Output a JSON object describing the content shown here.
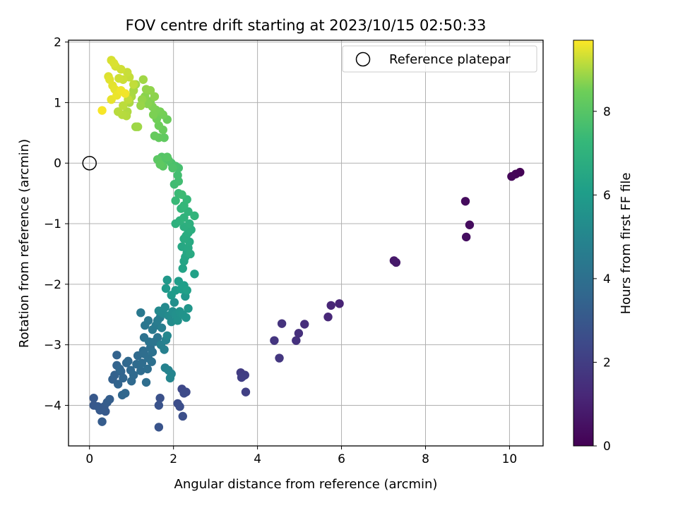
{
  "chart_data": {
    "type": "scatter",
    "title": "FOV centre drift starting at 2023/10/15 02:50:33",
    "xlabel": "Angular distance from reference (arcmin)",
    "ylabel": "Rotation from reference (arcmin)",
    "colorbar_label": "Hours from first FF file",
    "xlim": [
      -0.5,
      10.8
    ],
    "ylim": [
      -4.67,
      2.03
    ],
    "x_ticks": [
      0,
      2,
      4,
      6,
      8,
      10
    ],
    "y_ticks": [
      -4,
      -3,
      -2,
      -1,
      0,
      1,
      2
    ],
    "colorbar_range": [
      0,
      9.7
    ],
    "colorbar_ticks": [
      0,
      2,
      4,
      6,
      8
    ],
    "colormap": "viridis",
    "grid": true,
    "legend": {
      "placement": "top-right",
      "entries": [
        "Reference platepar"
      ]
    },
    "reference_point": {
      "x": 0,
      "y": 0
    },
    "points": [
      {
        "x": 10.25,
        "y": -0.15,
        "t": 0.05
      },
      {
        "x": 10.15,
        "y": -0.18,
        "t": 0.1
      },
      {
        "x": 10.05,
        "y": -0.22,
        "t": 0.15
      },
      {
        "x": 8.95,
        "y": -0.63,
        "t": 0.3
      },
      {
        "x": 9.05,
        "y": -1.02,
        "t": 0.35
      },
      {
        "x": 8.97,
        "y": -1.22,
        "t": 0.4
      },
      {
        "x": 7.25,
        "y": -1.61,
        "t": 0.7
      },
      {
        "x": 7.3,
        "y": -1.64,
        "t": 0.75
      },
      {
        "x": 5.95,
        "y": -2.32,
        "t": 1.1
      },
      {
        "x": 5.75,
        "y": -2.35,
        "t": 1.15
      },
      {
        "x": 5.68,
        "y": -2.54,
        "t": 1.2
      },
      {
        "x": 5.12,
        "y": -2.66,
        "t": 1.4
      },
      {
        "x": 4.98,
        "y": -2.81,
        "t": 1.5
      },
      {
        "x": 4.92,
        "y": -2.93,
        "t": 1.55
      },
      {
        "x": 4.58,
        "y": -2.65,
        "t": 1.6
      },
      {
        "x": 4.4,
        "y": -2.93,
        "t": 1.7
      },
      {
        "x": 4.52,
        "y": -3.22,
        "t": 1.75
      },
      {
        "x": 3.6,
        "y": -3.46,
        "t": 1.95
      },
      {
        "x": 3.65,
        "y": -3.52,
        "t": 2.0
      },
      {
        "x": 3.7,
        "y": -3.5,
        "t": 2.02
      },
      {
        "x": 3.62,
        "y": -3.54,
        "t": 2.05
      },
      {
        "x": 3.72,
        "y": -3.78,
        "t": 2.1
      },
      {
        "x": 2.2,
        "y": -3.73,
        "t": 2.4
      },
      {
        "x": 2.3,
        "y": -3.78,
        "t": 2.45
      },
      {
        "x": 2.25,
        "y": -3.8,
        "t": 2.5
      },
      {
        "x": 2.1,
        "y": -3.97,
        "t": 2.6
      },
      {
        "x": 2.15,
        "y": -4.02,
        "t": 2.62
      },
      {
        "x": 2.22,
        "y": -4.18,
        "t": 2.65
      },
      {
        "x": 1.68,
        "y": -3.88,
        "t": 2.75
      },
      {
        "x": 1.65,
        "y": -4.0,
        "t": 2.8
      },
      {
        "x": 1.65,
        "y": -4.36,
        "t": 2.85
      },
      {
        "x": 0.1,
        "y": -3.88,
        "t": 3.0
      },
      {
        "x": 0.1,
        "y": -4.0,
        "t": 3.0
      },
      {
        "x": 0.2,
        "y": -4.02,
        "t": 3.05
      },
      {
        "x": 0.3,
        "y": -4.05,
        "t": 3.05
      },
      {
        "x": 0.25,
        "y": -4.08,
        "t": 3.1
      },
      {
        "x": 0.38,
        "y": -4.1,
        "t": 3.1
      },
      {
        "x": 0.35,
        "y": -4.02,
        "t": 3.12
      },
      {
        "x": 0.3,
        "y": -4.27,
        "t": 3.15
      },
      {
        "x": 0.42,
        "y": -3.95,
        "t": 3.2
      },
      {
        "x": 0.48,
        "y": -3.9,
        "t": 3.25
      },
      {
        "x": 0.55,
        "y": -3.57,
        "t": 3.35
      },
      {
        "x": 0.6,
        "y": -3.5,
        "t": 3.4
      },
      {
        "x": 0.65,
        "y": -3.17,
        "t": 3.45
      },
      {
        "x": 0.65,
        "y": -3.34,
        "t": 3.48
      },
      {
        "x": 0.68,
        "y": -3.65,
        "t": 3.5
      },
      {
        "x": 0.75,
        "y": -3.44,
        "t": 3.52
      },
      {
        "x": 0.8,
        "y": -3.55,
        "t": 3.55
      },
      {
        "x": 0.72,
        "y": -3.4,
        "t": 3.58
      },
      {
        "x": 0.78,
        "y": -3.83,
        "t": 3.6
      },
      {
        "x": 0.85,
        "y": -3.8,
        "t": 3.62
      },
      {
        "x": 0.88,
        "y": -3.3,
        "t": 3.65
      },
      {
        "x": 0.92,
        "y": -3.27,
        "t": 3.68
      },
      {
        "x": 0.98,
        "y": -3.42,
        "t": 3.7
      },
      {
        "x": 1.0,
        "y": -3.6,
        "t": 3.72
      },
      {
        "x": 1.05,
        "y": -3.5,
        "t": 3.75
      },
      {
        "x": 1.12,
        "y": -3.32,
        "t": 3.78
      },
      {
        "x": 1.15,
        "y": -3.18,
        "t": 3.8
      },
      {
        "x": 1.22,
        "y": -3.43,
        "t": 3.82
      },
      {
        "x": 1.25,
        "y": -3.3,
        "t": 3.85
      },
      {
        "x": 1.28,
        "y": -3.1,
        "t": 3.88
      },
      {
        "x": 1.3,
        "y": -3.15,
        "t": 3.9
      },
      {
        "x": 1.35,
        "y": -3.62,
        "t": 3.9
      },
      {
        "x": 1.38,
        "y": -3.4,
        "t": 3.92
      },
      {
        "x": 1.4,
        "y": -3.22,
        "t": 3.95
      },
      {
        "x": 1.45,
        "y": -3.05,
        "t": 3.98
      },
      {
        "x": 1.48,
        "y": -3.28,
        "t": 4.0
      },
      {
        "x": 1.5,
        "y": -3.12,
        "t": 4.05
      },
      {
        "x": 1.3,
        "y": -2.88,
        "t": 4.1
      },
      {
        "x": 1.42,
        "y": -2.95,
        "t": 4.15
      },
      {
        "x": 1.55,
        "y": -2.95,
        "t": 4.2
      },
      {
        "x": 1.62,
        "y": -2.88,
        "t": 4.25
      },
      {
        "x": 1.32,
        "y": -2.68,
        "t": 4.3
      },
      {
        "x": 1.4,
        "y": -2.6,
        "t": 4.35
      },
      {
        "x": 1.22,
        "y": -2.47,
        "t": 4.4
      },
      {
        "x": 1.5,
        "y": -2.75,
        "t": 4.45
      },
      {
        "x": 1.58,
        "y": -2.68,
        "t": 4.5
      },
      {
        "x": 1.62,
        "y": -2.6,
        "t": 4.55
      },
      {
        "x": 1.68,
        "y": -2.55,
        "t": 4.6
      },
      {
        "x": 1.72,
        "y": -2.72,
        "t": 4.65
      },
      {
        "x": 1.7,
        "y": -3.0,
        "t": 4.7
      },
      {
        "x": 1.78,
        "y": -3.08,
        "t": 4.75
      },
      {
        "x": 1.82,
        "y": -2.92,
        "t": 4.8
      },
      {
        "x": 1.8,
        "y": -3.38,
        "t": 4.85
      },
      {
        "x": 1.88,
        "y": -3.42,
        "t": 4.9
      },
      {
        "x": 1.95,
        "y": -3.48,
        "t": 4.95
      },
      {
        "x": 1.92,
        "y": -3.55,
        "t": 5.0
      },
      {
        "x": 1.85,
        "y": -2.85,
        "t": 5.05
      },
      {
        "x": 1.75,
        "y": -2.48,
        "t": 5.1
      },
      {
        "x": 1.65,
        "y": -2.44,
        "t": 5.15
      },
      {
        "x": 1.8,
        "y": -2.38,
        "t": 5.2
      },
      {
        "x": 1.88,
        "y": -2.52,
        "t": 5.25
      },
      {
        "x": 1.95,
        "y": -2.62,
        "t": 5.3
      },
      {
        "x": 1.98,
        "y": -2.45,
        "t": 5.35
      },
      {
        "x": 2.02,
        "y": -2.3,
        "t": 5.4
      },
      {
        "x": 2.05,
        "y": -2.5,
        "t": 5.45
      },
      {
        "x": 2.1,
        "y": -2.6,
        "t": 5.5
      },
      {
        "x": 2.15,
        "y": -2.45,
        "t": 5.55
      },
      {
        "x": 2.22,
        "y": -2.5,
        "t": 5.6
      },
      {
        "x": 2.3,
        "y": -2.55,
        "t": 5.65
      },
      {
        "x": 2.35,
        "y": -2.4,
        "t": 5.7
      },
      {
        "x": 2.28,
        "y": -2.2,
        "t": 5.75
      },
      {
        "x": 1.85,
        "y": -1.93,
        "t": 5.8
      },
      {
        "x": 1.82,
        "y": -2.07,
        "t": 5.85
      },
      {
        "x": 1.95,
        "y": -2.18,
        "t": 5.9
      },
      {
        "x": 2.05,
        "y": -2.1,
        "t": 5.95
      },
      {
        "x": 2.12,
        "y": -1.95,
        "t": 6.0
      },
      {
        "x": 2.18,
        "y": -2.08,
        "t": 6.05
      },
      {
        "x": 2.25,
        "y": -2.02,
        "t": 6.1
      },
      {
        "x": 2.32,
        "y": -2.1,
        "t": 6.15
      },
      {
        "x": 2.5,
        "y": -1.83,
        "t": 6.2
      },
      {
        "x": 2.22,
        "y": -1.74,
        "t": 6.3
      },
      {
        "x": 2.25,
        "y": -1.62,
        "t": 6.35
      },
      {
        "x": 2.28,
        "y": -1.55,
        "t": 6.4
      },
      {
        "x": 2.32,
        "y": -1.48,
        "t": 6.45
      },
      {
        "x": 2.2,
        "y": -1.38,
        "t": 6.5
      },
      {
        "x": 2.35,
        "y": -1.4,
        "t": 6.55
      },
      {
        "x": 2.38,
        "y": -1.3,
        "t": 6.6
      },
      {
        "x": 2.4,
        "y": -1.5,
        "t": 6.62
      },
      {
        "x": 2.25,
        "y": -1.25,
        "t": 6.65
      },
      {
        "x": 2.3,
        "y": -1.2,
        "t": 6.7
      },
      {
        "x": 2.35,
        "y": -1.15,
        "t": 6.75
      },
      {
        "x": 2.42,
        "y": -1.1,
        "t": 6.8
      },
      {
        "x": 2.25,
        "y": -1.05,
        "t": 6.85
      },
      {
        "x": 2.38,
        "y": -1.0,
        "t": 6.9
      },
      {
        "x": 2.05,
        "y": -1.0,
        "t": 6.95
      },
      {
        "x": 2.15,
        "y": -0.95,
        "t": 7.0
      },
      {
        "x": 2.25,
        "y": -0.9,
        "t": 7.05
      },
      {
        "x": 2.35,
        "y": -0.8,
        "t": 7.1
      },
      {
        "x": 2.5,
        "y": -0.87,
        "t": 7.15
      },
      {
        "x": 2.18,
        "y": -0.75,
        "t": 7.2
      },
      {
        "x": 2.25,
        "y": -0.7,
        "t": 7.25
      },
      {
        "x": 2.32,
        "y": -0.6,
        "t": 7.3
      },
      {
        "x": 2.05,
        "y": -0.62,
        "t": 7.35
      },
      {
        "x": 2.12,
        "y": -0.5,
        "t": 7.4
      },
      {
        "x": 2.2,
        "y": -0.52,
        "t": 7.45
      },
      {
        "x": 2.02,
        "y": -0.35,
        "t": 7.5
      },
      {
        "x": 2.12,
        "y": -0.3,
        "t": 7.55
      },
      {
        "x": 2.1,
        "y": -0.2,
        "t": 7.6
      },
      {
        "x": 2.12,
        "y": -0.08,
        "t": 7.65
      },
      {
        "x": 2.05,
        "y": -0.05,
        "t": 7.7
      },
      {
        "x": 1.95,
        "y": 0.0,
        "t": 7.75
      },
      {
        "x": 1.98,
        "y": -0.08,
        "t": 7.8
      },
      {
        "x": 1.88,
        "y": 0.05,
        "t": 7.85
      },
      {
        "x": 1.8,
        "y": 0.08,
        "t": 7.9
      },
      {
        "x": 1.72,
        "y": 0.1,
        "t": 7.95
      },
      {
        "x": 1.85,
        "y": 0.1,
        "t": 8.0
      },
      {
        "x": 1.75,
        "y": -0.05,
        "t": 8.05
      },
      {
        "x": 1.62,
        "y": 0.06,
        "t": 8.1
      },
      {
        "x": 1.68,
        "y": -0.02,
        "t": 8.15
      },
      {
        "x": 1.78,
        "y": 0.42,
        "t": 8.2
      },
      {
        "x": 1.65,
        "y": 0.42,
        "t": 8.25
      },
      {
        "x": 1.55,
        "y": 0.45,
        "t": 8.3
      },
      {
        "x": 1.75,
        "y": 0.55,
        "t": 8.35
      },
      {
        "x": 1.85,
        "y": 0.72,
        "t": 8.4
      },
      {
        "x": 1.65,
        "y": 0.62,
        "t": 8.45
      },
      {
        "x": 1.6,
        "y": 0.73,
        "t": 8.5
      },
      {
        "x": 1.75,
        "y": 0.8,
        "t": 8.52
      },
      {
        "x": 1.68,
        "y": 0.85,
        "t": 8.55
      },
      {
        "x": 1.58,
        "y": 0.88,
        "t": 8.58
      },
      {
        "x": 1.52,
        "y": 0.8,
        "t": 8.6
      },
      {
        "x": 1.5,
        "y": 0.93,
        "t": 8.62
      },
      {
        "x": 1.45,
        "y": 1.02,
        "t": 8.65
      },
      {
        "x": 1.38,
        "y": 0.98,
        "t": 8.7
      },
      {
        "x": 1.32,
        "y": 1.1,
        "t": 8.72
      },
      {
        "x": 1.55,
        "y": 1.1,
        "t": 8.75
      },
      {
        "x": 1.45,
        "y": 1.2,
        "t": 8.78
      },
      {
        "x": 1.35,
        "y": 1.22,
        "t": 8.8
      },
      {
        "x": 1.25,
        "y": 1.05,
        "t": 8.82
      },
      {
        "x": 1.22,
        "y": 0.95,
        "t": 8.85
      },
      {
        "x": 1.1,
        "y": 0.6,
        "t": 8.88
      },
      {
        "x": 1.15,
        "y": 0.6,
        "t": 8.9
      },
      {
        "x": 1.28,
        "y": 1.38,
        "t": 8.92
      },
      {
        "x": 1.1,
        "y": 1.3,
        "t": 8.95
      },
      {
        "x": 1.05,
        "y": 1.2,
        "t": 8.98
      },
      {
        "x": 1.0,
        "y": 1.1,
        "t": 9.0
      },
      {
        "x": 0.95,
        "y": 1.0,
        "t": 9.02
      },
      {
        "x": 0.9,
        "y": 0.85,
        "t": 9.05
      },
      {
        "x": 0.88,
        "y": 0.78,
        "t": 9.08
      },
      {
        "x": 0.78,
        "y": 0.8,
        "t": 9.1
      },
      {
        "x": 0.68,
        "y": 0.85,
        "t": 9.12
      },
      {
        "x": 0.8,
        "y": 0.95,
        "t": 9.15
      },
      {
        "x": 0.92,
        "y": 1.05,
        "t": 9.18
      },
      {
        "x": 1.05,
        "y": 1.3,
        "t": 9.2
      },
      {
        "x": 0.95,
        "y": 1.42,
        "t": 9.22
      },
      {
        "x": 0.9,
        "y": 1.5,
        "t": 9.25
      },
      {
        "x": 0.8,
        "y": 1.38,
        "t": 9.28
      },
      {
        "x": 0.7,
        "y": 1.4,
        "t": 9.3
      },
      {
        "x": 0.75,
        "y": 1.55,
        "t": 9.32
      },
      {
        "x": 0.62,
        "y": 1.6,
        "t": 9.35
      },
      {
        "x": 0.52,
        "y": 1.7,
        "t": 9.38
      },
      {
        "x": 0.58,
        "y": 1.65,
        "t": 9.4
      },
      {
        "x": 0.45,
        "y": 1.43,
        "t": 9.42
      },
      {
        "x": 0.48,
        "y": 1.38,
        "t": 9.45
      },
      {
        "x": 0.55,
        "y": 1.28,
        "t": 9.48
      },
      {
        "x": 0.6,
        "y": 1.22,
        "t": 9.5
      },
      {
        "x": 0.52,
        "y": 1.05,
        "t": 9.52
      },
      {
        "x": 0.65,
        "y": 1.12,
        "t": 9.55
      },
      {
        "x": 0.75,
        "y": 1.2,
        "t": 9.58
      },
      {
        "x": 0.85,
        "y": 1.15,
        "t": 9.6
      },
      {
        "x": 0.3,
        "y": 0.87,
        "t": 9.65
      }
    ]
  }
}
